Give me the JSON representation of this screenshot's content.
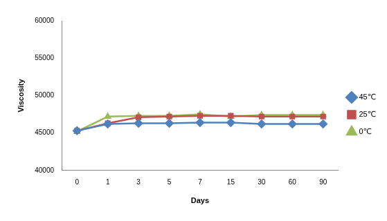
{
  "chart_data": {
    "type": "line",
    "x_label": "Days",
    "y_label": "Viscosity",
    "categories": [
      0,
      1,
      3,
      5,
      7,
      15,
      30,
      60,
      90
    ],
    "series": [
      {
        "name": "45℃",
        "color": "#4f81bd",
        "marker": "diamond",
        "values": [
          45300,
          46200,
          46300,
          46300,
          46400,
          46400,
          46200,
          46200,
          46200
        ]
      },
      {
        "name": "25℃",
        "color": "#c0504d",
        "marker": "square",
        "values": [
          45300,
          46300,
          47100,
          47200,
          47300,
          47300,
          47200,
          47200,
          47200
        ]
      },
      {
        "name": "0℃",
        "color": "#9bbb59",
        "marker": "triangle",
        "values": [
          45200,
          47200,
          47300,
          47300,
          47500,
          47200,
          47400,
          47400,
          47400
        ]
      }
    ],
    "ylim": [
      40000,
      60000
    ],
    "yticks": [
      40000,
      45000,
      50000,
      55000,
      60000
    ],
    "grid": false,
    "legend": "right"
  }
}
